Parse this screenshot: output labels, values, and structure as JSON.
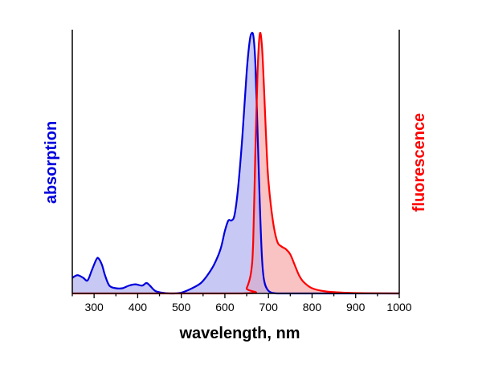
{
  "chart_data": {
    "type": "area",
    "xlabel": "wavelength, nm",
    "ylabel_left": "absorption",
    "ylabel_right": "fluorescence",
    "xlim": [
      250,
      1000
    ],
    "ylim": [
      0,
      1
    ],
    "x_ticks": [
      300,
      400,
      500,
      600,
      700,
      800,
      900,
      1000
    ],
    "y_ticks_labeled": false,
    "grid": false,
    "colors": {
      "absorption_line": "#0000dd",
      "absorption_fill": "#c8c8f5",
      "fluorescence_line": "#ff0000",
      "fluorescence_fill": "#f9c3c3",
      "overlap_fill": "#d2b4d8"
    },
    "series": [
      {
        "name": "absorption",
        "x": [
          250,
          262,
          275,
          285,
          295,
          305,
          310,
          318,
          325,
          335,
          350,
          365,
          380,
          395,
          410,
          420,
          428,
          440,
          455,
          475,
          500,
          525,
          545,
          560,
          575,
          590,
          600,
          608,
          615,
          622,
          630,
          640,
          650,
          657,
          662,
          666,
          670,
          675,
          680,
          685,
          690,
          700,
          720,
          760,
          850,
          1000
        ],
        "y": [
          0.06,
          0.07,
          0.06,
          0.05,
          0.09,
          0.13,
          0.135,
          0.11,
          0.07,
          0.03,
          0.02,
          0.02,
          0.03,
          0.035,
          0.03,
          0.04,
          0.03,
          0.01,
          0.003,
          0.0,
          0.003,
          0.02,
          0.04,
          0.07,
          0.11,
          0.17,
          0.24,
          0.28,
          0.28,
          0.3,
          0.4,
          0.6,
          0.85,
          0.97,
          1.0,
          0.98,
          0.88,
          0.62,
          0.35,
          0.14,
          0.05,
          0.01,
          0.0,
          0.0,
          0.0,
          0.0
        ]
      },
      {
        "name": "fluorescence",
        "x": [
          250,
          640,
          650,
          660,
          665,
          670,
          675,
          680,
          685,
          690,
          695,
          700,
          710,
          720,
          730,
          740,
          750,
          760,
          770,
          780,
          800,
          830,
          870,
          920,
          1000
        ],
        "y": [
          0.0,
          0.0,
          0.02,
          0.08,
          0.2,
          0.55,
          0.85,
          0.995,
          0.95,
          0.78,
          0.58,
          0.43,
          0.28,
          0.2,
          0.18,
          0.17,
          0.15,
          0.11,
          0.07,
          0.045,
          0.02,
          0.008,
          0.003,
          0.001,
          0.0
        ]
      }
    ]
  }
}
